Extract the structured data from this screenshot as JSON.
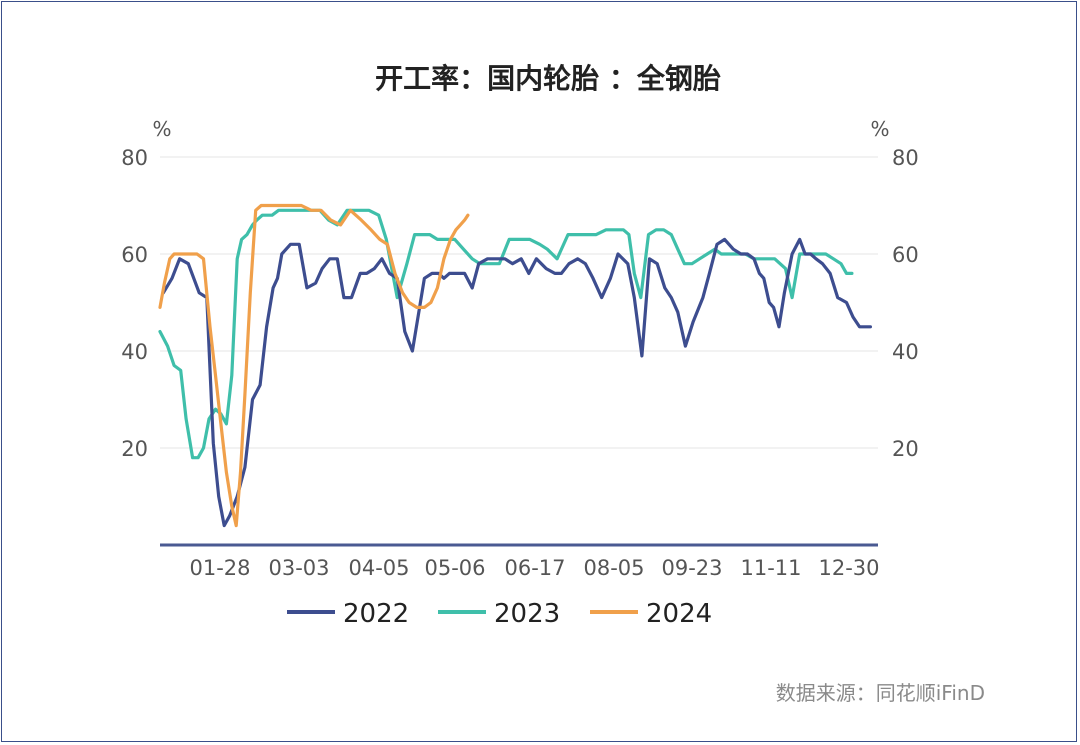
{
  "source": "数据来源：同花顺iFinD",
  "chart_data": {
    "type": "line",
    "title": "开工率：国内轮胎 ：全钢胎",
    "y_unit_left": "%",
    "y_unit_right": "%",
    "y_ticks": [
      "80",
      "60",
      "40",
      "20"
    ],
    "ylim": [
      0,
      80
    ],
    "x_tick_labels": [
      "01-28",
      "03-03",
      "04-05",
      "05-06",
      "06-17",
      "08-05",
      "09-23",
      "11-11",
      "12-30"
    ],
    "grid": true,
    "legend_position": "bottom",
    "colors": {
      "2022": "#3d4d8f",
      "2023": "#3fbfaa",
      "2024": "#f0a04b"
    },
    "series": [
      {
        "name": "2022",
        "x": [
          0.3,
          1.1,
          1.8,
          2.6,
          3.6,
          4.3,
          4.9,
          5.4,
          5.9,
          6.4,
          7.1,
          7.8,
          8.5,
          9.2,
          9.8,
          10.4,
          10.8,
          11.2,
          12.0,
          12.8,
          13.5,
          14.3,
          14.9,
          15.6,
          16.3,
          16.9,
          17.6,
          18.4,
          19.0,
          19.7,
          20.4,
          21.1,
          21.8,
          22.5,
          23.2,
          24.3,
          25.0,
          25.6,
          26.1,
          26.6,
          27.3,
          28.0,
          28.7,
          29.3,
          30.1,
          30.8,
          31.7,
          32.4,
          33.2,
          33.9,
          34.6,
          35.5,
          36.3,
          36.9,
          37.6,
          38.4,
          39.1,
          39.8,
          40.6,
          41.4,
          42.1,
          43.0,
          43.6,
          44.3,
          45.0,
          45.7,
          46.4,
          47.0,
          47.6,
          48.3,
          49.0,
          49.9,
          50.5,
          51.2,
          51.9,
          52.7,
          53.4,
          54.0,
          54.6,
          55.1,
          55.5,
          56.0,
          56.4,
          56.9,
          57.4,
          58.1,
          58.8,
          59.3,
          59.8,
          60.3,
          60.9,
          61.6,
          62.3,
          63.1,
          63.7,
          64.3,
          64.8,
          65.3
        ],
        "values": [
          52.0,
          55.0,
          59.0,
          58.0,
          52.0,
          51.0,
          21.0,
          10.0,
          4.0,
          6.0,
          10.0,
          16.0,
          30.0,
          33.0,
          45.0,
          53.0,
          55.0,
          60.0,
          62.0,
          62.0,
          53.0,
          54.0,
          57.0,
          59.0,
          59.0,
          51.0,
          51.0,
          56.0,
          56.0,
          57.0,
          59.0,
          56.0,
          55.0,
          44.0,
          40.0,
          55.0,
          56.0,
          56.0,
          55.0,
          56.0,
          56.0,
          56.0,
          53.0,
          58.0,
          59.0,
          59.0,
          59.0,
          58.0,
          59.0,
          56.0,
          59.0,
          57.0,
          56.0,
          56.0,
          58.0,
          59.0,
          58.0,
          55.0,
          51.0,
          55.0,
          60.0,
          58.0,
          51.0,
          39.0,
          59.0,
          58.0,
          53.0,
          51.0,
          48.0,
          41.0,
          46.0,
          51.0,
          56.0,
          62.0,
          63.0,
          61.0,
          60.0,
          60.0,
          59.0,
          56.0,
          55.0,
          50.0,
          49.0,
          45.0,
          52.0,
          60.0,
          63.0,
          60.0,
          60.0,
          59.0,
          58.0,
          56.0,
          51.0,
          50.0,
          47.0,
          45.0,
          45.0,
          45.0
        ]
      },
      {
        "name": "2023",
        "x": [
          0.0,
          0.7,
          1.3,
          1.9,
          2.4,
          3.0,
          3.5,
          4.0,
          4.5,
          5.1,
          5.6,
          6.1,
          6.6,
          7.1,
          7.5,
          8.0,
          8.5,
          8.9,
          9.4,
          9.9,
          10.3,
          10.9,
          11.5,
          12.2,
          13.0,
          13.8,
          14.7,
          15.5,
          16.3,
          17.2,
          18.1,
          19.2,
          20.1,
          20.8,
          21.8,
          22.7,
          23.4,
          24.1,
          24.8,
          25.5,
          26.3,
          27.1,
          27.9,
          28.7,
          29.4,
          30.3,
          31.2,
          32.1,
          33.1,
          34.0,
          34.9,
          35.6,
          36.5,
          37.5,
          38.4,
          39.3,
          40.1,
          41.0,
          41.8,
          42.6,
          43.1,
          43.6,
          44.2,
          44.9,
          45.6,
          46.3,
          47.0,
          47.6,
          48.2,
          48.9,
          49.6,
          50.3,
          51.0,
          51.6,
          52.3,
          53.0,
          53.8,
          54.6,
          55.4,
          56.0,
          56.5,
          57.0,
          57.5,
          58.1,
          58.8,
          59.4,
          60.0,
          60.6,
          61.2,
          61.9,
          62.6,
          63.1,
          63.6
        ],
        "values": [
          44.0,
          41.0,
          37.0,
          36.0,
          26.0,
          18.0,
          18.0,
          20.0,
          26.0,
          28.0,
          27.0,
          25.0,
          35.0,
          59.0,
          63.0,
          64.0,
          66.0,
          67.0,
          68.0,
          68.0,
          68.0,
          69.0,
          69.0,
          69.0,
          69.0,
          69.0,
          69.0,
          67.0,
          66.0,
          69.0,
          69.0,
          69.0,
          68.0,
          63.0,
          51.0,
          58.0,
          64.0,
          64.0,
          64.0,
          63.0,
          63.0,
          63.0,
          61.0,
          59.0,
          58.0,
          58.0,
          58.0,
          63.0,
          63.0,
          63.0,
          62.0,
          61.0,
          59.0,
          64.0,
          64.0,
          64.0,
          64.0,
          65.0,
          65.0,
          65.0,
          64.0,
          56.0,
          51.0,
          64.0,
          65.0,
          65.0,
          64.0,
          61.0,
          58.0,
          58.0,
          59.0,
          60.0,
          61.0,
          60.0,
          60.0,
          60.0,
          60.0,
          59.0,
          59.0,
          59.0,
          59.0,
          58.0,
          57.0,
          51.0,
          60.0,
          60.0,
          60.0,
          60.0,
          60.0,
          59.0,
          58.0,
          56.0,
          56.0
        ]
      },
      {
        "name": "2024",
        "x": [
          0.0,
          0.4,
          0.9,
          1.3,
          1.8,
          2.3,
          2.8,
          3.4,
          4.0,
          4.6,
          5.1,
          5.6,
          6.1,
          6.6,
          7.0,
          7.4,
          7.8,
          8.3,
          8.8,
          9.3,
          9.8,
          10.3,
          10.8,
          11.2,
          11.6,
          12.2,
          13.0,
          13.9,
          14.8,
          15.7,
          16.6,
          17.5,
          18.5,
          19.4,
          20.2,
          20.9,
          21.6,
          22.3,
          22.9,
          23.6,
          24.3,
          24.9,
          25.5,
          26.1,
          26.7,
          27.2,
          27.6,
          28.0,
          28.3
        ],
        "values": [
          49.0,
          54.0,
          59.0,
          60.0,
          60.0,
          60.0,
          60.0,
          60.0,
          59.0,
          45.0,
          35.0,
          25.0,
          15.0,
          8.0,
          4.0,
          15.0,
          31.0,
          52.0,
          69.0,
          70.0,
          70.0,
          70.0,
          70.0,
          70.0,
          70.0,
          70.0,
          70.0,
          69.0,
          69.0,
          67.0,
          66.0,
          69.0,
          67.0,
          65.0,
          63.0,
          62.0,
          56.0,
          52.0,
          50.0,
          49.0,
          49.0,
          50.0,
          53.0,
          59.0,
          63.0,
          65.0,
          66.0,
          67.0,
          68.0
        ]
      }
    ]
  }
}
